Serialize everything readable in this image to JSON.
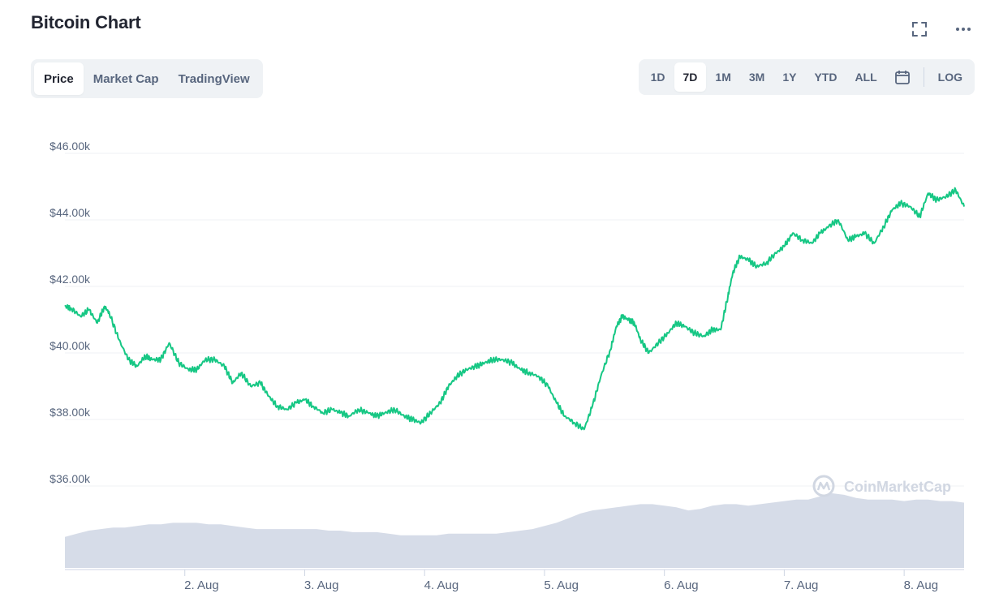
{
  "header": {
    "title": "Bitcoin Chart"
  },
  "view_tabs": [
    {
      "label": "Price",
      "active": true
    },
    {
      "label": "Market Cap",
      "active": false
    },
    {
      "label": "TradingView",
      "active": false
    }
  ],
  "range_tabs": [
    {
      "label": "1D",
      "active": false
    },
    {
      "label": "7D",
      "active": true
    },
    {
      "label": "1M",
      "active": false
    },
    {
      "label": "3M",
      "active": false
    },
    {
      "label": "1Y",
      "active": false
    },
    {
      "label": "YTD",
      "active": false
    },
    {
      "label": "ALL",
      "active": false
    }
  ],
  "log_label": "LOG",
  "icons": {
    "fullscreen": "fullscreen-icon",
    "more": "more-options-icon",
    "calendar": "calendar-icon"
  },
  "watermark": "CoinMarketCap",
  "colors": {
    "price_line": "#16c784",
    "volume_fill": "#cfd6e4",
    "grid": "#eff2f5",
    "active_tab_bg": "#ffffff",
    "tab_group_bg": "#eff2f5"
  },
  "chart_data": {
    "type": "line",
    "title": "",
    "xlabel": "",
    "ylabel": "",
    "ylim": [
      36000,
      46000
    ],
    "y_ticks": [
      36000,
      38000,
      40000,
      42000,
      44000,
      46000
    ],
    "y_tick_labels": [
      "$36.00k",
      "$38.00k",
      "$40.00k",
      "$42.00k",
      "$44.00k",
      "$46.00k"
    ],
    "x_tick_labels": [
      "2. Aug",
      "3. Aug",
      "4. Aug",
      "5. Aug",
      "6. Aug",
      "7. Aug",
      "8. Aug"
    ],
    "x_tick_positions": [
      2.25,
      3.25,
      4.25,
      5.25,
      6.25,
      7.25,
      8.25
    ],
    "xlim": [
      1.25,
      8.75
    ],
    "grid": true,
    "series": [
      {
        "values_x": [
          1.25,
          1.3,
          1.38,
          1.45,
          1.52,
          1.58,
          1.62,
          1.7,
          1.78,
          1.85,
          1.92,
          1.98,
          2.05,
          2.12,
          2.2,
          2.28,
          2.35,
          2.42,
          2.5,
          2.58,
          2.65,
          2.72,
          2.8,
          2.88,
          2.95,
          3.02,
          3.1,
          3.18,
          3.25,
          3.32,
          3.4,
          3.48,
          3.55,
          3.62,
          3.7,
          3.78,
          3.85,
          3.92,
          4.0,
          4.08,
          4.15,
          4.22,
          4.3,
          4.38,
          4.45,
          4.52,
          4.6,
          4.68,
          4.75,
          4.82,
          4.9,
          4.98,
          5.05,
          5.12,
          5.2,
          5.28,
          5.35,
          5.42,
          5.5,
          5.58,
          5.65,
          5.72,
          5.8,
          5.85,
          5.9,
          5.95,
          6.0,
          6.05,
          6.12,
          6.2,
          6.28,
          6.35,
          6.42,
          6.5,
          6.58,
          6.65,
          6.72,
          6.78,
          6.82,
          6.88,
          6.95,
          7.02,
          7.1,
          7.18,
          7.25,
          7.32,
          7.4,
          7.48,
          7.55,
          7.62,
          7.7,
          7.78,
          7.85,
          7.92,
          8.0,
          8.08,
          8.15,
          8.22,
          8.3,
          8.38,
          8.45,
          8.52,
          8.6,
          8.68,
          8.75
        ],
        "values": [
          41400,
          41350,
          41100,
          41300,
          40900,
          41400,
          41200,
          40400,
          39800,
          39600,
          39900,
          39800,
          39800,
          40300,
          39700,
          39500,
          39500,
          39800,
          39800,
          39600,
          39100,
          39400,
          39000,
          39100,
          38700,
          38400,
          38300,
          38500,
          38600,
          38400,
          38200,
          38300,
          38200,
          38100,
          38300,
          38200,
          38100,
          38200,
          38300,
          38100,
          38000,
          37900,
          38200,
          38500,
          39000,
          39300,
          39500,
          39600,
          39700,
          39800,
          39800,
          39700,
          39500,
          39400,
          39300,
          39000,
          38500,
          38100,
          37900,
          37700,
          38400,
          39300,
          40100,
          40800,
          41100,
          41000,
          40900,
          40400,
          40000,
          40300,
          40600,
          40900,
          40800,
          40600,
          40500,
          40700,
          40700,
          41700,
          42400,
          42900,
          42800,
          42600,
          42700,
          43000,
          43200,
          43600,
          43400,
          43300,
          43600,
          43800,
          44000,
          43400,
          43500,
          43600,
          43300,
          43800,
          44300,
          44500,
          44400,
          44100,
          44800,
          44600,
          44700,
          44900,
          44400
        ]
      }
    ],
    "volume": {
      "values": [
        2,
        2.2,
        2.4,
        2.5,
        2.6,
        2.6,
        2.7,
        2.8,
        2.8,
        2.9,
        2.9,
        2.9,
        2.8,
        2.8,
        2.7,
        2.6,
        2.5,
        2.5,
        2.5,
        2.5,
        2.5,
        2.5,
        2.4,
        2.4,
        2.3,
        2.3,
        2.3,
        2.2,
        2.1,
        2.1,
        2.1,
        2.1,
        2.2,
        2.2,
        2.2,
        2.2,
        2.2,
        2.3,
        2.4,
        2.5,
        2.7,
        2.9,
        3.2,
        3.5,
        3.7,
        3.8,
        3.9,
        4.0,
        4.1,
        4.1,
        4.0,
        3.9,
        3.7,
        3.8,
        4.0,
        4.1,
        4.1,
        4.0,
        4.1,
        4.2,
        4.3,
        4.4,
        4.4,
        4.6,
        4.8,
        4.7,
        4.5,
        4.4,
        4.4,
        4.4,
        4.3,
        4.4,
        4.4,
        4.3,
        4.3,
        4.2
      ]
    }
  }
}
